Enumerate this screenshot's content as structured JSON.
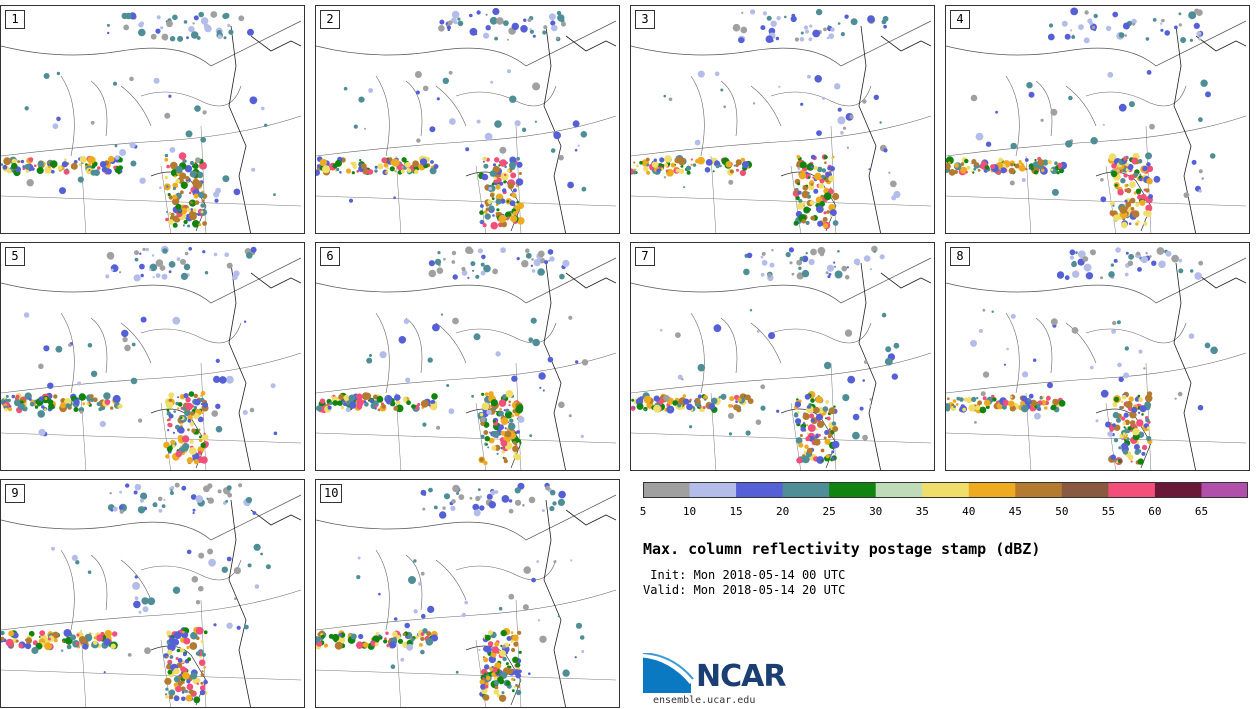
{
  "panels": [
    {
      "label": "1"
    },
    {
      "label": "2"
    },
    {
      "label": "3"
    },
    {
      "label": "4"
    },
    {
      "label": "5"
    },
    {
      "label": "6"
    },
    {
      "label": "7"
    },
    {
      "label": "8"
    },
    {
      "label": "9"
    },
    {
      "label": "10"
    }
  ],
  "colorbar": {
    "ticks": [
      "5",
      "10",
      "15",
      "20",
      "25",
      "30",
      "35",
      "40",
      "45",
      "50",
      "55",
      "60",
      "65"
    ],
    "colors": [
      "#a0a0a0",
      "#b4bcea",
      "#5660d6",
      "#4f8e96",
      "#10840e",
      "#bedcb8",
      "#f0de6a",
      "#eeaa20",
      "#b47a30",
      "#8a5a40",
      "#f2507a",
      "#6a1838",
      "#b050aa"
    ]
  },
  "title": "Max. column reflectivity postage stamp (dBZ)",
  "init": " Init: Mon 2018-05-14 00 UTC",
  "valid": "Valid: Mon 2018-05-14 20 UTC",
  "logo": {
    "name": "NCAR",
    "url": "ensemble.ucar.edu"
  }
}
